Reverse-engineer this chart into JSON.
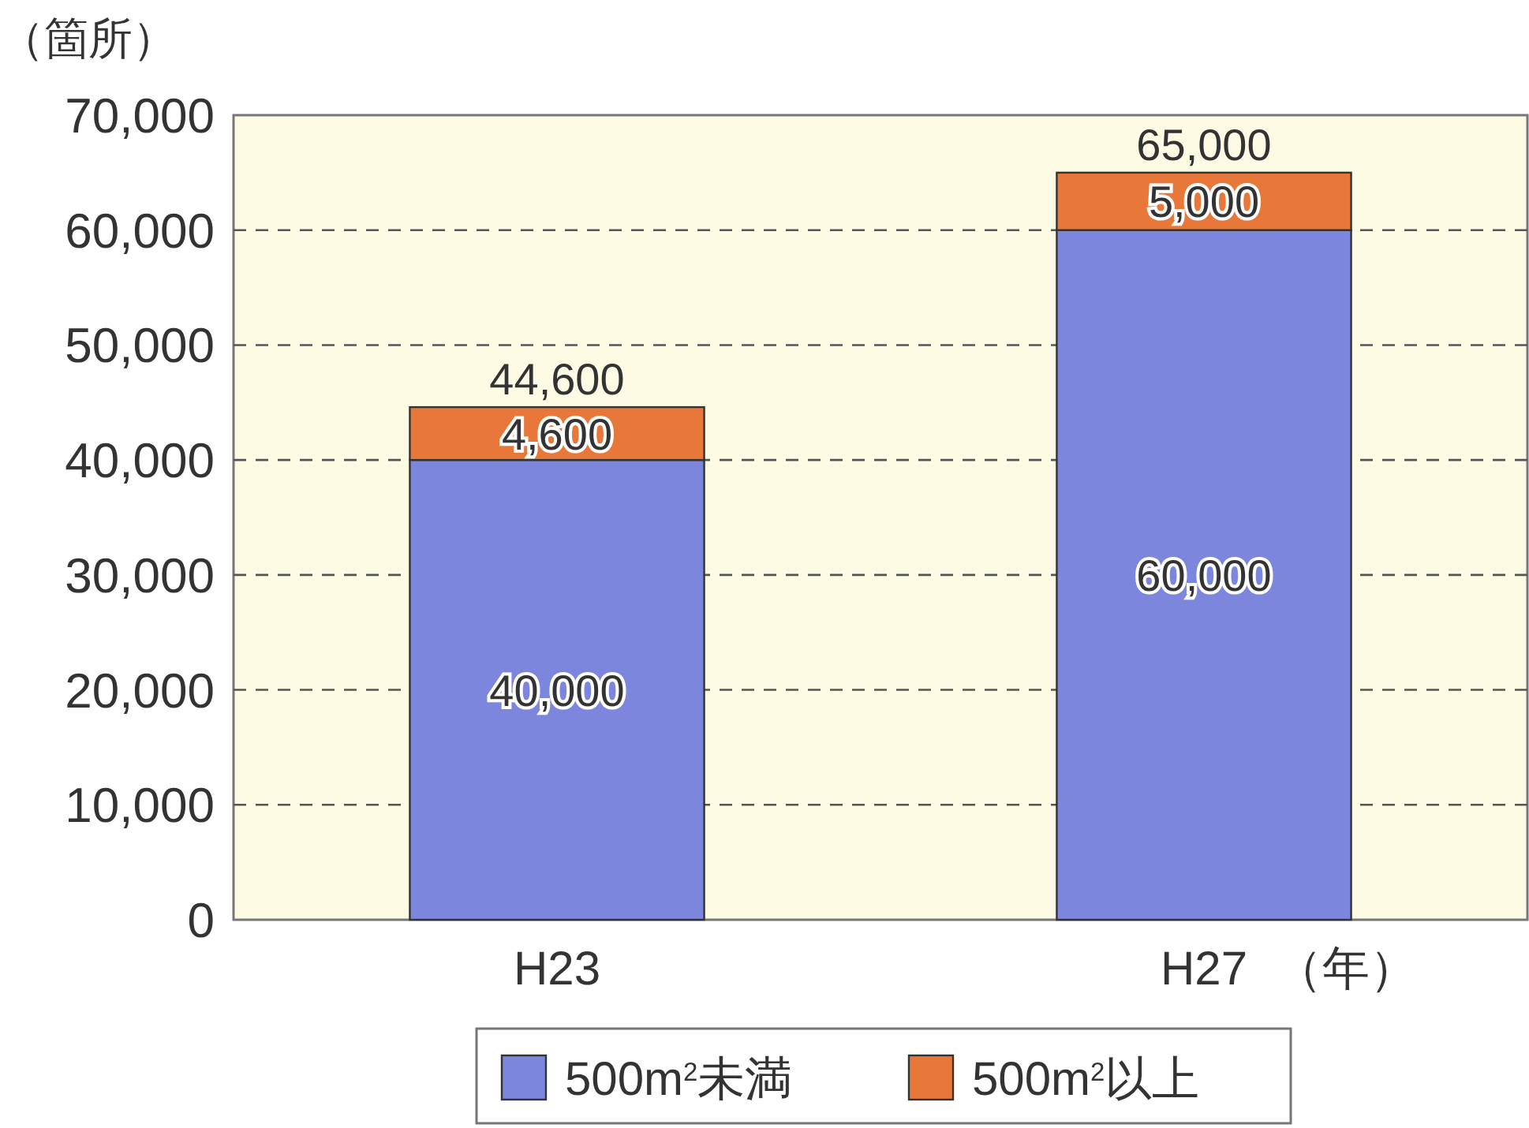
{
  "chart_data": {
    "type": "bar",
    "stacked": true,
    "ylabel": "（箇所）",
    "xlabel": "（年）",
    "categories": [
      "H23",
      "H27"
    ],
    "series": [
      {
        "name": "500m$^{2}$未満",
        "color": "#7b86dc",
        "values": [
          40000,
          60000
        ],
        "value_labels": [
          "40,000",
          "60,000"
        ]
      },
      {
        "name": "500m$^{2}$以上",
        "color": "#e8773a",
        "values": [
          4600,
          5000
        ],
        "value_labels": [
          "4,600",
          "5,000"
        ]
      }
    ],
    "totals": [
      "44,600",
      "65,000"
    ],
    "ylim": [
      0,
      70000
    ],
    "yticks": [
      0,
      {
        "value": 10000,
        "label": "10,000"
      },
      {
        "value": 20000,
        "label": "20,000"
      },
      {
        "value": 30000,
        "label": "30,000"
      },
      {
        "value": 40000,
        "label": "40,000"
      },
      {
        "value": 50000,
        "label": "50,000"
      },
      {
        "value": 60000,
        "label": "60,000"
      },
      {
        "value": 70000,
        "label": "70,000"
      }
    ],
    "grid": "y",
    "line_style": "dashed",
    "legend": "bottom"
  }
}
